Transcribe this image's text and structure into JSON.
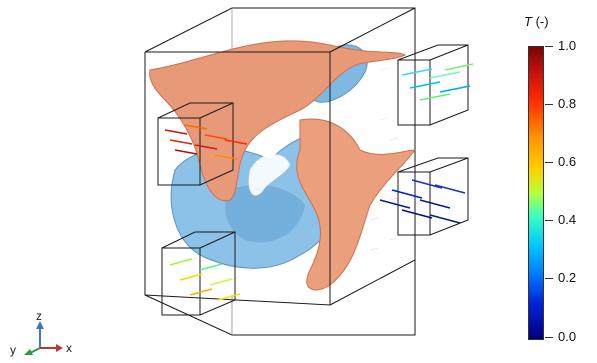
{
  "colorbar": {
    "var": "T",
    "unit": " (-)",
    "ticks": [
      "1.0",
      "0.8",
      "0.6",
      "0.4",
      "0.2",
      "0.0"
    ]
  },
  "axes": {
    "x": "x",
    "y": "y",
    "z": "z"
  },
  "colors": {
    "hot_surface": "#e89a78",
    "cold_surface": "#7fb8e3",
    "frame": "#111111"
  }
}
